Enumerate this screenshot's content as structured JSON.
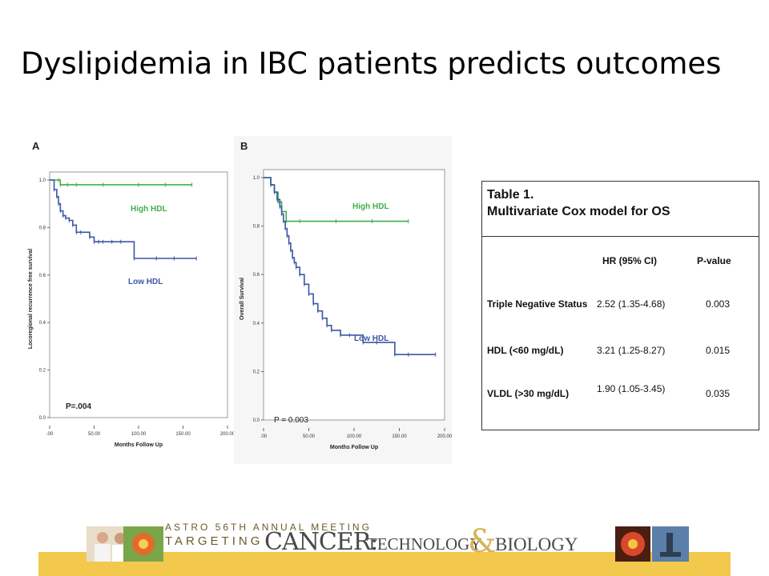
{
  "slide": {
    "title": "Dyslipidemia in IBC patients predicts outcomes"
  },
  "chart_data": [
    {
      "type": "line",
      "panel_label": "A",
      "xlabel": "Months Follow Up",
      "ylabel": "Locoregional recurrence free survival",
      "xlim": [
        0,
        200
      ],
      "ylim": [
        0,
        1.0
      ],
      "x_ticks": [
        ".00",
        "50.00",
        "100.00",
        "150.00",
        "200.00"
      ],
      "y_ticks": [
        "0.0",
        "0.2",
        "0.4",
        "0.6",
        "0.8",
        "1.0"
      ],
      "annotation": "P=.004",
      "series": [
        {
          "name": "High HDL",
          "color": "#3fae49",
          "x": [
            0,
            10,
            12,
            20,
            30,
            60,
            100,
            130,
            160
          ],
          "y": [
            1.0,
            1.0,
            0.98,
            0.98,
            0.98,
            0.98,
            0.98,
            0.98,
            0.98
          ]
        },
        {
          "name": "Low HDL",
          "color": "#3b56a5",
          "x": [
            0,
            5,
            8,
            10,
            12,
            15,
            18,
            22,
            26,
            30,
            35,
            45,
            50,
            55,
            60,
            70,
            80,
            95,
            120,
            140,
            165
          ],
          "y": [
            1.0,
            0.96,
            0.93,
            0.9,
            0.87,
            0.85,
            0.84,
            0.83,
            0.81,
            0.78,
            0.78,
            0.76,
            0.74,
            0.74,
            0.74,
            0.74,
            0.74,
            0.67,
            0.67,
            0.67,
            0.67
          ]
        }
      ]
    },
    {
      "type": "line",
      "panel_label": "B",
      "xlabel": "Months Follow Up",
      "ylabel": "Overall Survival",
      "xlim": [
        0,
        200
      ],
      "ylim": [
        0,
        1.0
      ],
      "x_ticks": [
        ".00",
        "50.00",
        "100.00",
        "150.00",
        "200.00"
      ],
      "y_ticks": [
        "0.0",
        "0.2",
        "0.4",
        "0.6",
        "0.8",
        "1.0"
      ],
      "annotation": "P = 0.003",
      "series": [
        {
          "name": "High HDL",
          "color": "#3fae49",
          "x": [
            0,
            8,
            12,
            16,
            20,
            25,
            40,
            80,
            120,
            160
          ],
          "y": [
            1.0,
            0.97,
            0.94,
            0.9,
            0.86,
            0.82,
            0.82,
            0.82,
            0.82,
            0.82
          ]
        },
        {
          "name": "Low HDL",
          "color": "#3b56a5",
          "x": [
            0,
            8,
            12,
            15,
            18,
            20,
            22,
            24,
            26,
            28,
            30,
            32,
            34,
            36,
            40,
            45,
            50,
            55,
            60,
            65,
            70,
            75,
            85,
            95,
            110,
            125,
            145,
            160,
            190
          ],
          "y": [
            1.0,
            0.97,
            0.94,
            0.91,
            0.88,
            0.85,
            0.82,
            0.79,
            0.76,
            0.73,
            0.7,
            0.67,
            0.65,
            0.63,
            0.6,
            0.56,
            0.52,
            0.48,
            0.45,
            0.42,
            0.39,
            0.37,
            0.35,
            0.35,
            0.32,
            0.32,
            0.27,
            0.27,
            0.27
          ]
        }
      ]
    }
  ],
  "table": {
    "title_line1": "Table 1.",
    "title_line2": "Multivariate Cox model for OS",
    "header_hr": "HR (95% CI)",
    "header_p": "P-value",
    "rows": [
      {
        "variable": "Triple Negative Status",
        "hr": "2.52 (1.35-4.68)",
        "p": "0.003"
      },
      {
        "variable": "HDL (<60 mg/dL)",
        "hr": "3.21 (1.25-8.27)",
        "p": "0.015"
      },
      {
        "variable": "VLDL (>30 mg/dL)",
        "hr": "1.90 (1.05-3.45)",
        "p": "0.035"
      }
    ]
  },
  "banner": {
    "meeting": "ASTRO 56TH ANNUAL MEETING",
    "targeting": "TARGETING",
    "cancer": "CANCER:",
    "technology": "TECHNOLOGY",
    "ampersand": "&",
    "biology": "BIOLOGY",
    "colors": {
      "strip": "#f2c94c"
    }
  }
}
